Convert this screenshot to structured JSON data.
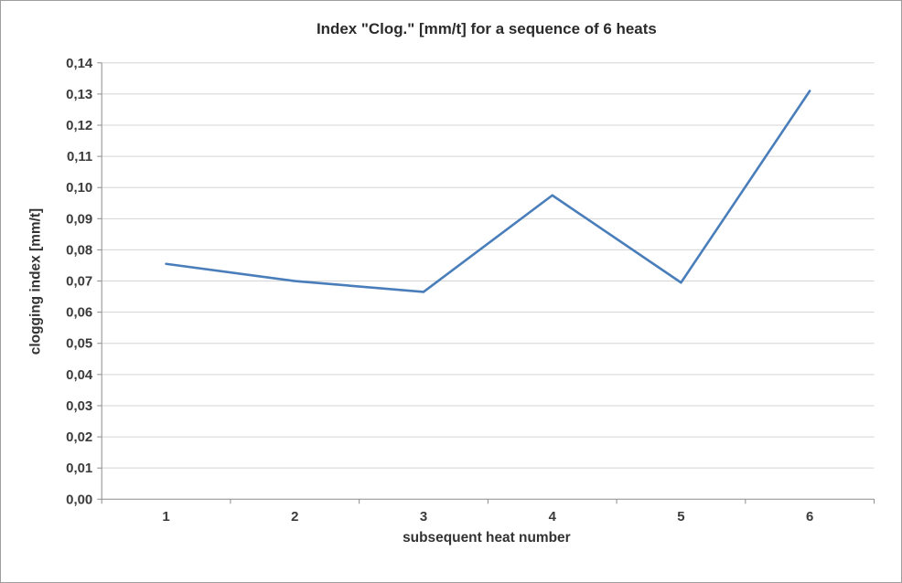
{
  "chart_data": {
    "type": "line",
    "title": "Index \"Clog.\" [mm/t] for a sequence of 6 heats",
    "xlabel": "subsequent  heat number",
    "ylabel": "clogging index [mm/t]",
    "categories": [
      "1",
      "2",
      "3",
      "4",
      "5",
      "6"
    ],
    "values": [
      0.0755,
      0.07,
      0.0665,
      0.0975,
      0.0695,
      0.131
    ],
    "ylim": [
      0.0,
      0.14
    ],
    "ytick_step": 0.01,
    "decimal_separator": ",",
    "grid": true,
    "legend": false,
    "colors": {
      "line": "#4a7ebb",
      "gridline": "#d5d5d5",
      "axis": "#8c8c8c",
      "frame_border": "#9d9d9d"
    }
  }
}
